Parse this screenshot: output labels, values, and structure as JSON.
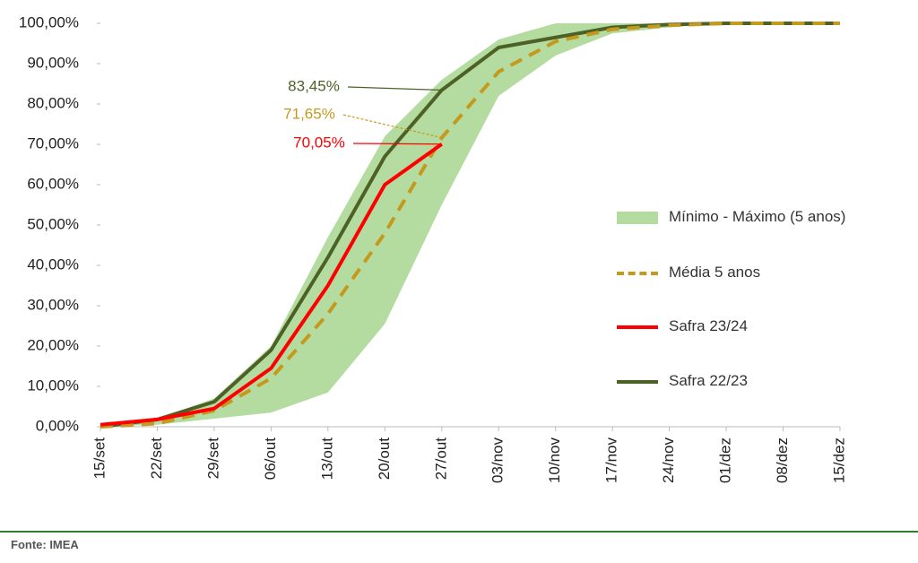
{
  "chart_data": {
    "type": "line",
    "categories": [
      "15/set",
      "22/set",
      "29/set",
      "06/out",
      "13/out",
      "20/out",
      "27/out",
      "03/nov",
      "10/nov",
      "17/nov",
      "24/nov",
      "01/dez",
      "08/dez",
      "15/dez"
    ],
    "series": [
      {
        "name": "Mínimo - Máximo (5 anos)",
        "color": "#b5dca0",
        "type": "band",
        "low": [
          0,
          0.5,
          2,
          3.5,
          8.5,
          25.5,
          55,
          82,
          92,
          97.5,
          99,
          100,
          100,
          100
        ],
        "high": [
          0.5,
          2,
          7,
          20,
          47,
          72,
          86,
          96,
          100,
          100,
          100,
          100,
          100,
          100
        ]
      },
      {
        "name": "Média 5 anos",
        "color": "#c49a1e",
        "dash": true,
        "values": [
          0,
          0.8,
          4,
          12,
          28,
          48,
          71.65,
          88,
          95.5,
          98.5,
          99.5,
          100,
          100,
          100
        ],
        "value_labels": [
          null,
          null,
          null,
          null,
          null,
          null,
          "71,65%",
          null,
          null,
          null,
          null,
          null,
          null,
          null
        ]
      },
      {
        "name": "Safra 23/24",
        "color": "#ff0000",
        "values": [
          0.5,
          1.8,
          4.5,
          14.5,
          35,
          60,
          70.05,
          null,
          null,
          null,
          null,
          null,
          null,
          null
        ],
        "value_labels": [
          null,
          null,
          null,
          null,
          null,
          null,
          "70,05%",
          null,
          null,
          null,
          null,
          null,
          null,
          null
        ]
      },
      {
        "name": "Safra 22/23",
        "color": "#4d6127",
        "values": [
          0,
          1.8,
          6.2,
          19,
          42,
          67,
          83.45,
          94,
          96.5,
          99,
          99.7,
          100,
          100,
          100
        ],
        "value_labels": [
          null,
          null,
          null,
          null,
          null,
          null,
          "83,45%",
          null,
          null,
          null,
          null,
          null,
          null,
          null
        ]
      }
    ],
    "ylim": [
      0,
      100
    ],
    "yticks": [
      {
        "value": 0,
        "label": "0,00%"
      },
      {
        "value": 10,
        "label": "10,00%"
      },
      {
        "value": 20,
        "label": "20,00%"
      },
      {
        "value": 30,
        "label": "30,00%"
      },
      {
        "value": 40,
        "label": "40,00%"
      },
      {
        "value": 50,
        "label": "50,00%"
      },
      {
        "value": 60,
        "label": "60,00%"
      },
      {
        "value": 70,
        "label": "70,00%"
      },
      {
        "value": 80,
        "label": "80,00%"
      },
      {
        "value": 90,
        "label": "90,00%"
      },
      {
        "value": 100,
        "label": "100,00%"
      }
    ],
    "source": "Fonte: IMEA"
  }
}
